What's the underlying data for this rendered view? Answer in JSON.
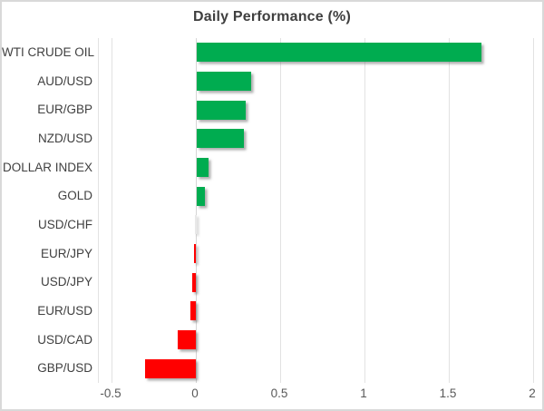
{
  "chart_data": {
    "type": "bar",
    "orientation": "horizontal",
    "title": "Daily Performance (%)",
    "categories": [
      "WTI CRUDE OIL",
      "AUD/USD",
      "EUR/GBP",
      "NZD/USD",
      "DOLLAR INDEX",
      "GOLD",
      "USD/CHF",
      "EUR/JPY",
      "USD/JPY",
      "EUR/USD",
      "USD/CAD",
      "GBP/USD"
    ],
    "values": [
      1.69,
      0.32,
      0.29,
      0.28,
      0.07,
      0.05,
      0.0,
      -0.01,
      -0.02,
      -0.03,
      -0.11,
      -0.3
    ],
    "xlabel": "",
    "ylabel": "",
    "xlim": [
      -0.5,
      2
    ],
    "xticks": [
      -0.5,
      0,
      0.5,
      1,
      1.5,
      2
    ],
    "xtick_labels": [
      "-0.5",
      "0",
      "0.5",
      "1",
      "1.5",
      "2"
    ],
    "grid": true,
    "legend_position": "none",
    "positive_color": "#00AC50",
    "negative_color": "#FF0000",
    "zero_bar_color": "#e8e8e8",
    "title_color": "#3f3f3f",
    "category_label_color": "#404040",
    "tick_label_color": "#595959",
    "gridline_color": "#e2e2e2"
  }
}
